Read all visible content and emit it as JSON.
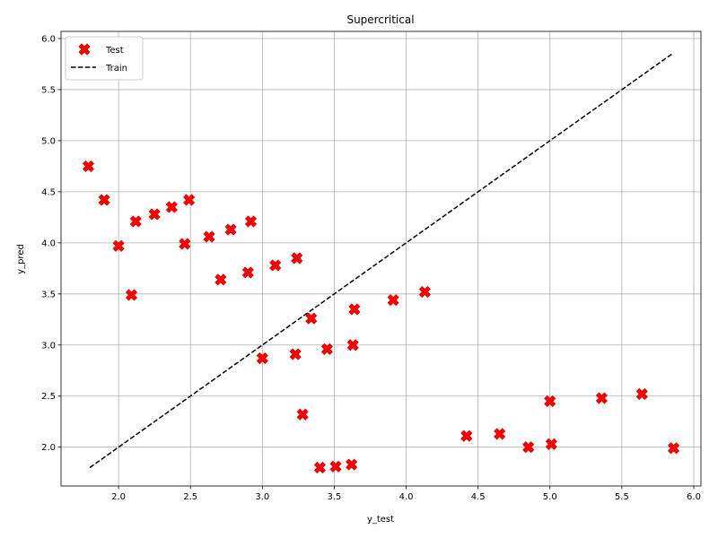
{
  "chart_data": {
    "type": "scatter",
    "title": "Supercritical",
    "xlabel": "y_test",
    "ylabel": "y_pred",
    "xlim": [
      1.6,
      6.05
    ],
    "ylim": [
      1.62,
      6.07
    ],
    "xticks": [
      "2.0",
      "2.5",
      "3.0",
      "3.5",
      "4.0",
      "4.5",
      "5.0",
      "5.5",
      "6.0"
    ],
    "yticks": [
      "2.0",
      "2.5",
      "3.0",
      "3.5",
      "4.0",
      "4.5",
      "5.0",
      "5.5",
      "6.0"
    ],
    "grid": true,
    "legend_position": "top-left",
    "series": [
      {
        "name": "Test",
        "kind": "scatter",
        "marker": "X",
        "color": "#ff0000",
        "edgecolor": "#cc0000",
        "x": [
          1.79,
          1.9,
          2.0,
          2.09,
          2.12,
          2.25,
          2.37,
          2.46,
          2.49,
          2.63,
          2.71,
          2.78,
          2.9,
          2.92,
          3.0,
          3.09,
          3.23,
          3.24,
          3.28,
          3.34,
          3.4,
          3.45,
          3.51,
          3.62,
          3.63,
          3.64,
          3.91,
          4.13,
          4.42,
          4.65,
          4.85,
          5.0,
          5.01,
          5.36,
          5.64,
          5.86
        ],
        "y": [
          4.75,
          4.42,
          3.97,
          3.49,
          4.21,
          4.28,
          4.35,
          3.99,
          4.42,
          4.06,
          3.64,
          4.13,
          3.71,
          4.21,
          2.87,
          3.78,
          2.91,
          3.85,
          2.32,
          3.26,
          1.8,
          2.96,
          1.81,
          1.83,
          3.0,
          3.35,
          3.44,
          3.52,
          2.11,
          2.13,
          2.0,
          2.45,
          2.03,
          2.48,
          2.52,
          1.99
        ]
      },
      {
        "name": "Train",
        "kind": "line",
        "linestyle": "dashed",
        "color": "#000000",
        "x": [
          1.8,
          5.85
        ],
        "y": [
          1.8,
          5.85
        ]
      }
    ]
  }
}
